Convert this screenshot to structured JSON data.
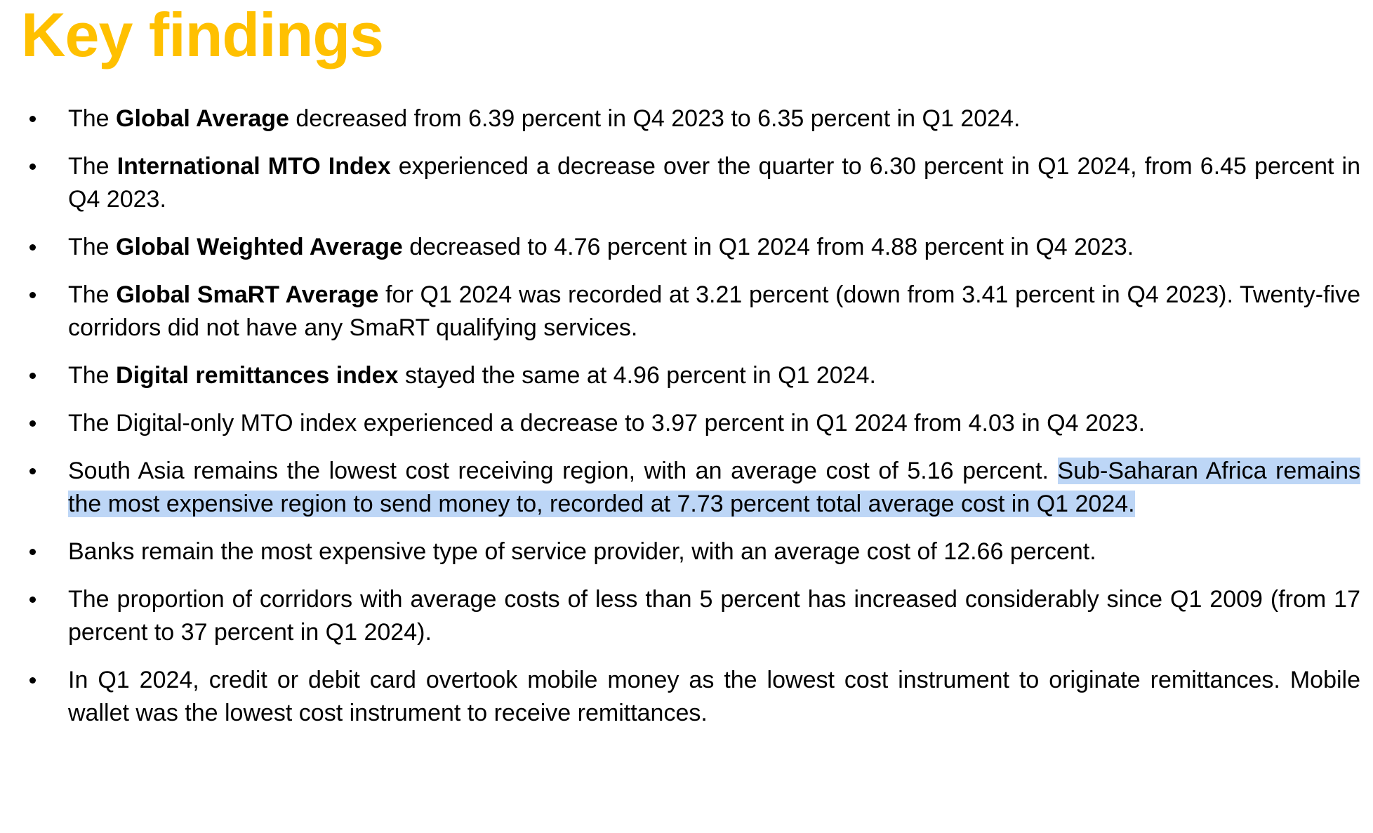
{
  "title": "Key findings",
  "colors": {
    "title": "#FFC000",
    "highlight": "#BDD6F6",
    "text": "#000000",
    "background": "#FFFFFF"
  },
  "key_findings": [
    {
      "segments": [
        {
          "text": "The "
        },
        {
          "text": "Global Average",
          "bold": true
        },
        {
          "text": " decreased from 6.39 percent in Q4 2023 to 6.35 percent in Q1 2024."
        }
      ]
    },
    {
      "segments": [
        {
          "text": "The "
        },
        {
          "text": "International MTO Index",
          "bold": true
        },
        {
          "text": " experienced a decrease over the quarter to 6.30 percent in Q1 2024, from 6.45 percent in Q4 2023."
        }
      ]
    },
    {
      "segments": [
        {
          "text": "The "
        },
        {
          "text": "Global Weighted Average",
          "bold": true
        },
        {
          "text": " decreased to 4.76 percent in Q1 2024 from 4.88 percent in Q4 2023."
        }
      ]
    },
    {
      "segments": [
        {
          "text": "The "
        },
        {
          "text": "Global SmaRT Average",
          "bold": true
        },
        {
          "text": " for Q1 2024 was recorded at 3.21 percent (down from 3.41 percent in Q4 2023). Twenty-five corridors did not have any SmaRT qualifying services."
        }
      ]
    },
    {
      "segments": [
        {
          "text": "The "
        },
        {
          "text": "Digital remittances index",
          "bold": true
        },
        {
          "text": " stayed the same at 4.96 percent in Q1 2024."
        }
      ]
    },
    {
      "segments": [
        {
          "text": "The Digital-only MTO index experienced a decrease to 3.97 percent in Q1 2024 from 4.03 in Q4 2023."
        }
      ]
    },
    {
      "segments": [
        {
          "text": "South Asia remains the lowest cost receiving region, with an average cost of 5.16 percent. "
        },
        {
          "text": "Sub-Saharan Africa remains the most expensive region to send money to, recorded at 7.73 percent total average cost in Q1 2024.",
          "highlight": true
        }
      ]
    },
    {
      "segments": [
        {
          "text": "Banks remain the most expensive type of service provider, with an average cost of 12.66 percent."
        }
      ]
    },
    {
      "segments": [
        {
          "text": "The proportion of corridors with average costs of less than 5 percent has increased considerably since Q1 2009 (from 17 percent to 37 percent in Q1 2024)."
        }
      ]
    },
    {
      "segments": [
        {
          "text": "In Q1 2024, credit or debit card overtook mobile money as the lowest cost instrument to originate remittances. Mobile wallet was the lowest cost instrument to receive remittances."
        }
      ]
    }
  ]
}
